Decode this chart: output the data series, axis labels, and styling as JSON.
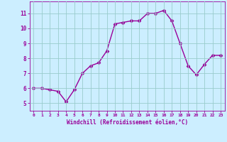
{
  "x": [
    0,
    1,
    2,
    3,
    4,
    5,
    6,
    7,
    8,
    9,
    10,
    11,
    12,
    13,
    14,
    15,
    16,
    17,
    18,
    19,
    20,
    21,
    22,
    23
  ],
  "y": [
    6.0,
    6.0,
    5.9,
    5.8,
    5.1,
    5.9,
    7.0,
    7.5,
    7.7,
    8.5,
    10.3,
    10.4,
    10.5,
    10.5,
    11.0,
    11.0,
    11.2,
    10.5,
    9.0,
    7.5,
    6.9,
    7.6,
    8.2,
    8.2
  ],
  "line_color": "#990099",
  "marker": "D",
  "markersize": 2.5,
  "linewidth": 1.0,
  "bg_color": "#cceeff",
  "grid_color": "#99cccc",
  "xlabel": "Windchill (Refroidissement éolien,°C)",
  "xlabel_color": "#990099",
  "tick_color": "#990099",
  "ylim": [
    4.5,
    11.8
  ],
  "xlim": [
    -0.5,
    23.5
  ],
  "yticks": [
    5,
    6,
    7,
    8,
    9,
    10,
    11
  ],
  "xticks": [
    0,
    1,
    2,
    3,
    4,
    5,
    6,
    7,
    8,
    9,
    10,
    11,
    12,
    13,
    14,
    15,
    16,
    17,
    18,
    19,
    20,
    21,
    22,
    23
  ]
}
